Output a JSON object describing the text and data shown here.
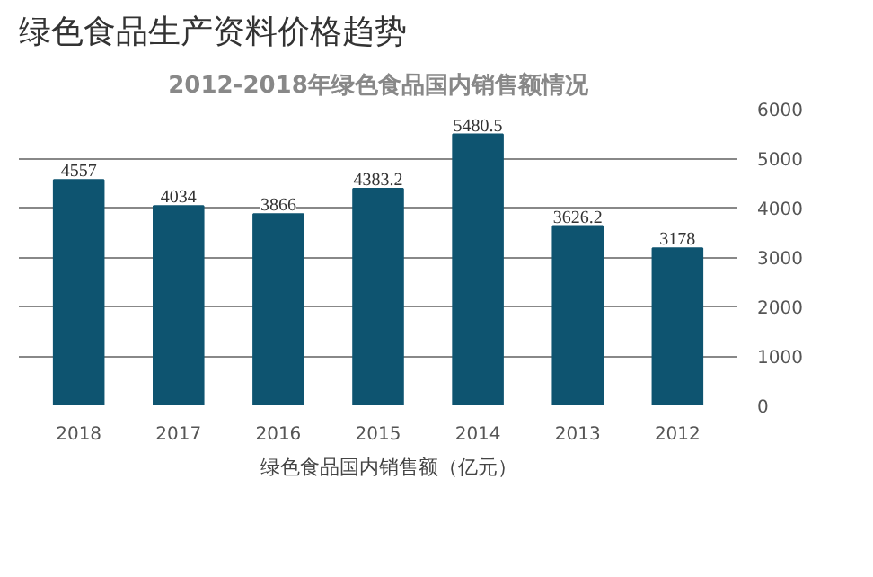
{
  "chart_data": {
    "type": "bar",
    "title": "绿色食品生产资料价格趋势",
    "subtitle": "2012-2018年绿色食品国内销售额情况",
    "categories": [
      "2018",
      "2017",
      "2016",
      "2015",
      "2014",
      "2013",
      "2012"
    ],
    "series": [
      {
        "name": "绿色食品国内销售额（亿元）",
        "color": "#0e5470",
        "values": [
          4557,
          4034,
          3866,
          4383.2,
          5480.5,
          3626.2,
          3178
        ]
      }
    ],
    "ylim": [
      0,
      6000
    ],
    "yticks": [
      0,
      1000,
      2000,
      3000,
      4000,
      5000,
      6000
    ],
    "grid": "y",
    "legend": "bottom",
    "data_labels": true
  }
}
